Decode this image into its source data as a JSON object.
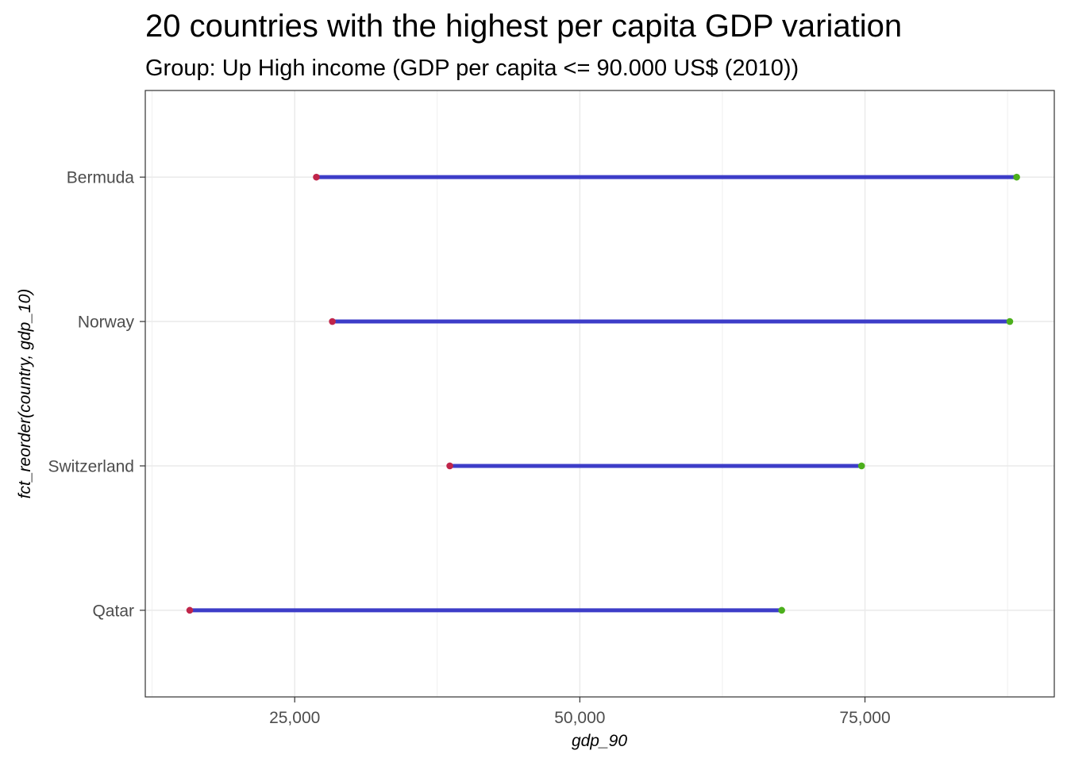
{
  "chart_data": {
    "type": "dumbbell",
    "title": "20 countries with the highest per capita GDP variation",
    "subtitle": "Group: Up High income (GDP per capita <= 90.000 US$ (2010))",
    "xlabel": "gdp_90",
    "ylabel": "fct_reorder(country, gdp_10)",
    "xlim": [
      11900,
      91600
    ],
    "x_ticks": [
      25000,
      50000,
      75000
    ],
    "x_tick_labels": [
      "25,000",
      "50,000",
      "75,000"
    ],
    "categories": [
      "Qatar",
      "Switzerland",
      "Norway",
      "Bermuda"
    ],
    "start_values": [
      15800,
      38600,
      28300,
      26900
    ],
    "end_values": [
      67700,
      74700,
      87700,
      88300
    ],
    "grid": true,
    "colors": {
      "segment": "#3d3dc8",
      "start_point": "#c0254a",
      "end_point": "#4caf1c",
      "grid": "#ebebeb",
      "panel_border": "#333333",
      "tick_label": "#4d4d4d"
    }
  }
}
